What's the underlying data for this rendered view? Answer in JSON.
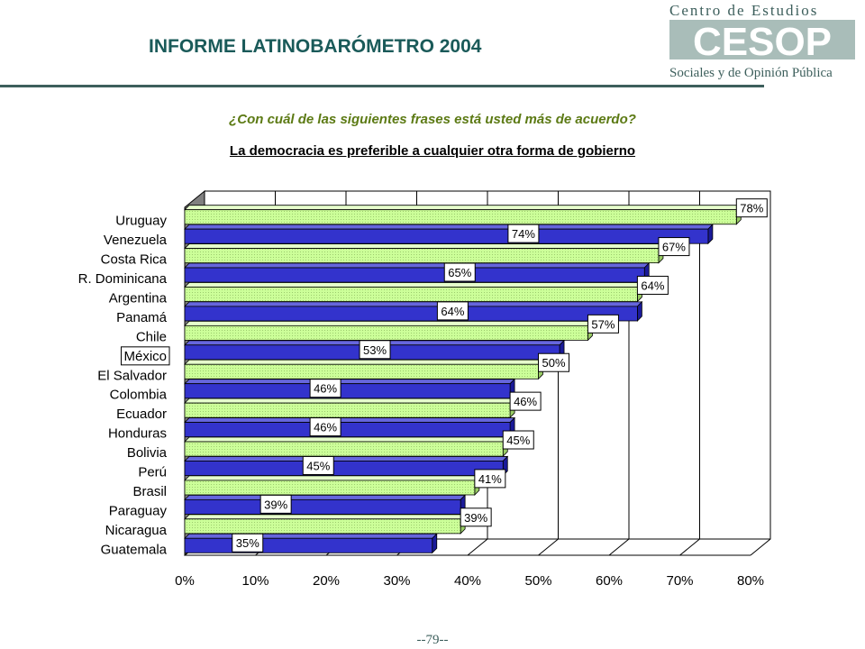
{
  "header": {
    "title": "INFORME LATINOBARÓMETRO 2004",
    "logo": {
      "line1": "Centro de Estudios",
      "mark": "CESOP",
      "line2": "Sociales y de Opinión Pública"
    }
  },
  "question": "¿Con cuál de las siguientes frases está usted más de acuerdo?",
  "subtitle": "La democracia es preferible a cualquier otra forma de gobierno",
  "page_number": "--79--",
  "colors": {
    "green_bar": "#ccff99",
    "blue_bar": "#3333cc",
    "wall": "#ffffff",
    "floor": "#808080",
    "title": "#1a5a59",
    "question": "#5c7a14"
  },
  "chart_data": {
    "type": "bar",
    "orientation": "horizontal",
    "categories": [
      "Uruguay",
      "Venezuela",
      "Costa Rica",
      "R. Dominicana",
      "Argentina",
      "Panamá",
      "Chile",
      "México",
      "El Salvador",
      "Colombia",
      "Ecuador",
      "Honduras",
      "Bolivia",
      "Perú",
      "Brasil",
      "Paraguay",
      "Nicaragua",
      "Guatemala"
    ],
    "values": [
      78,
      74,
      67,
      65,
      64,
      64,
      57,
      53,
      50,
      46,
      46,
      46,
      45,
      45,
      41,
      39,
      39,
      35
    ],
    "data_labels": [
      "78%",
      "74%",
      "67%",
      "65%",
      "64%",
      "64%",
      "57%",
      "53%",
      "50%",
      "46%",
      "46%",
      "46%",
      "45%",
      "45%",
      "41%",
      "39%",
      "39%",
      "35%"
    ],
    "highlight_category": "México",
    "xlim": [
      0,
      80
    ],
    "x_ticks": [
      "0%",
      "10%",
      "20%",
      "30%",
      "40%",
      "50%",
      "60%",
      "70%",
      "80%"
    ],
    "grid": true,
    "style": "3d"
  }
}
